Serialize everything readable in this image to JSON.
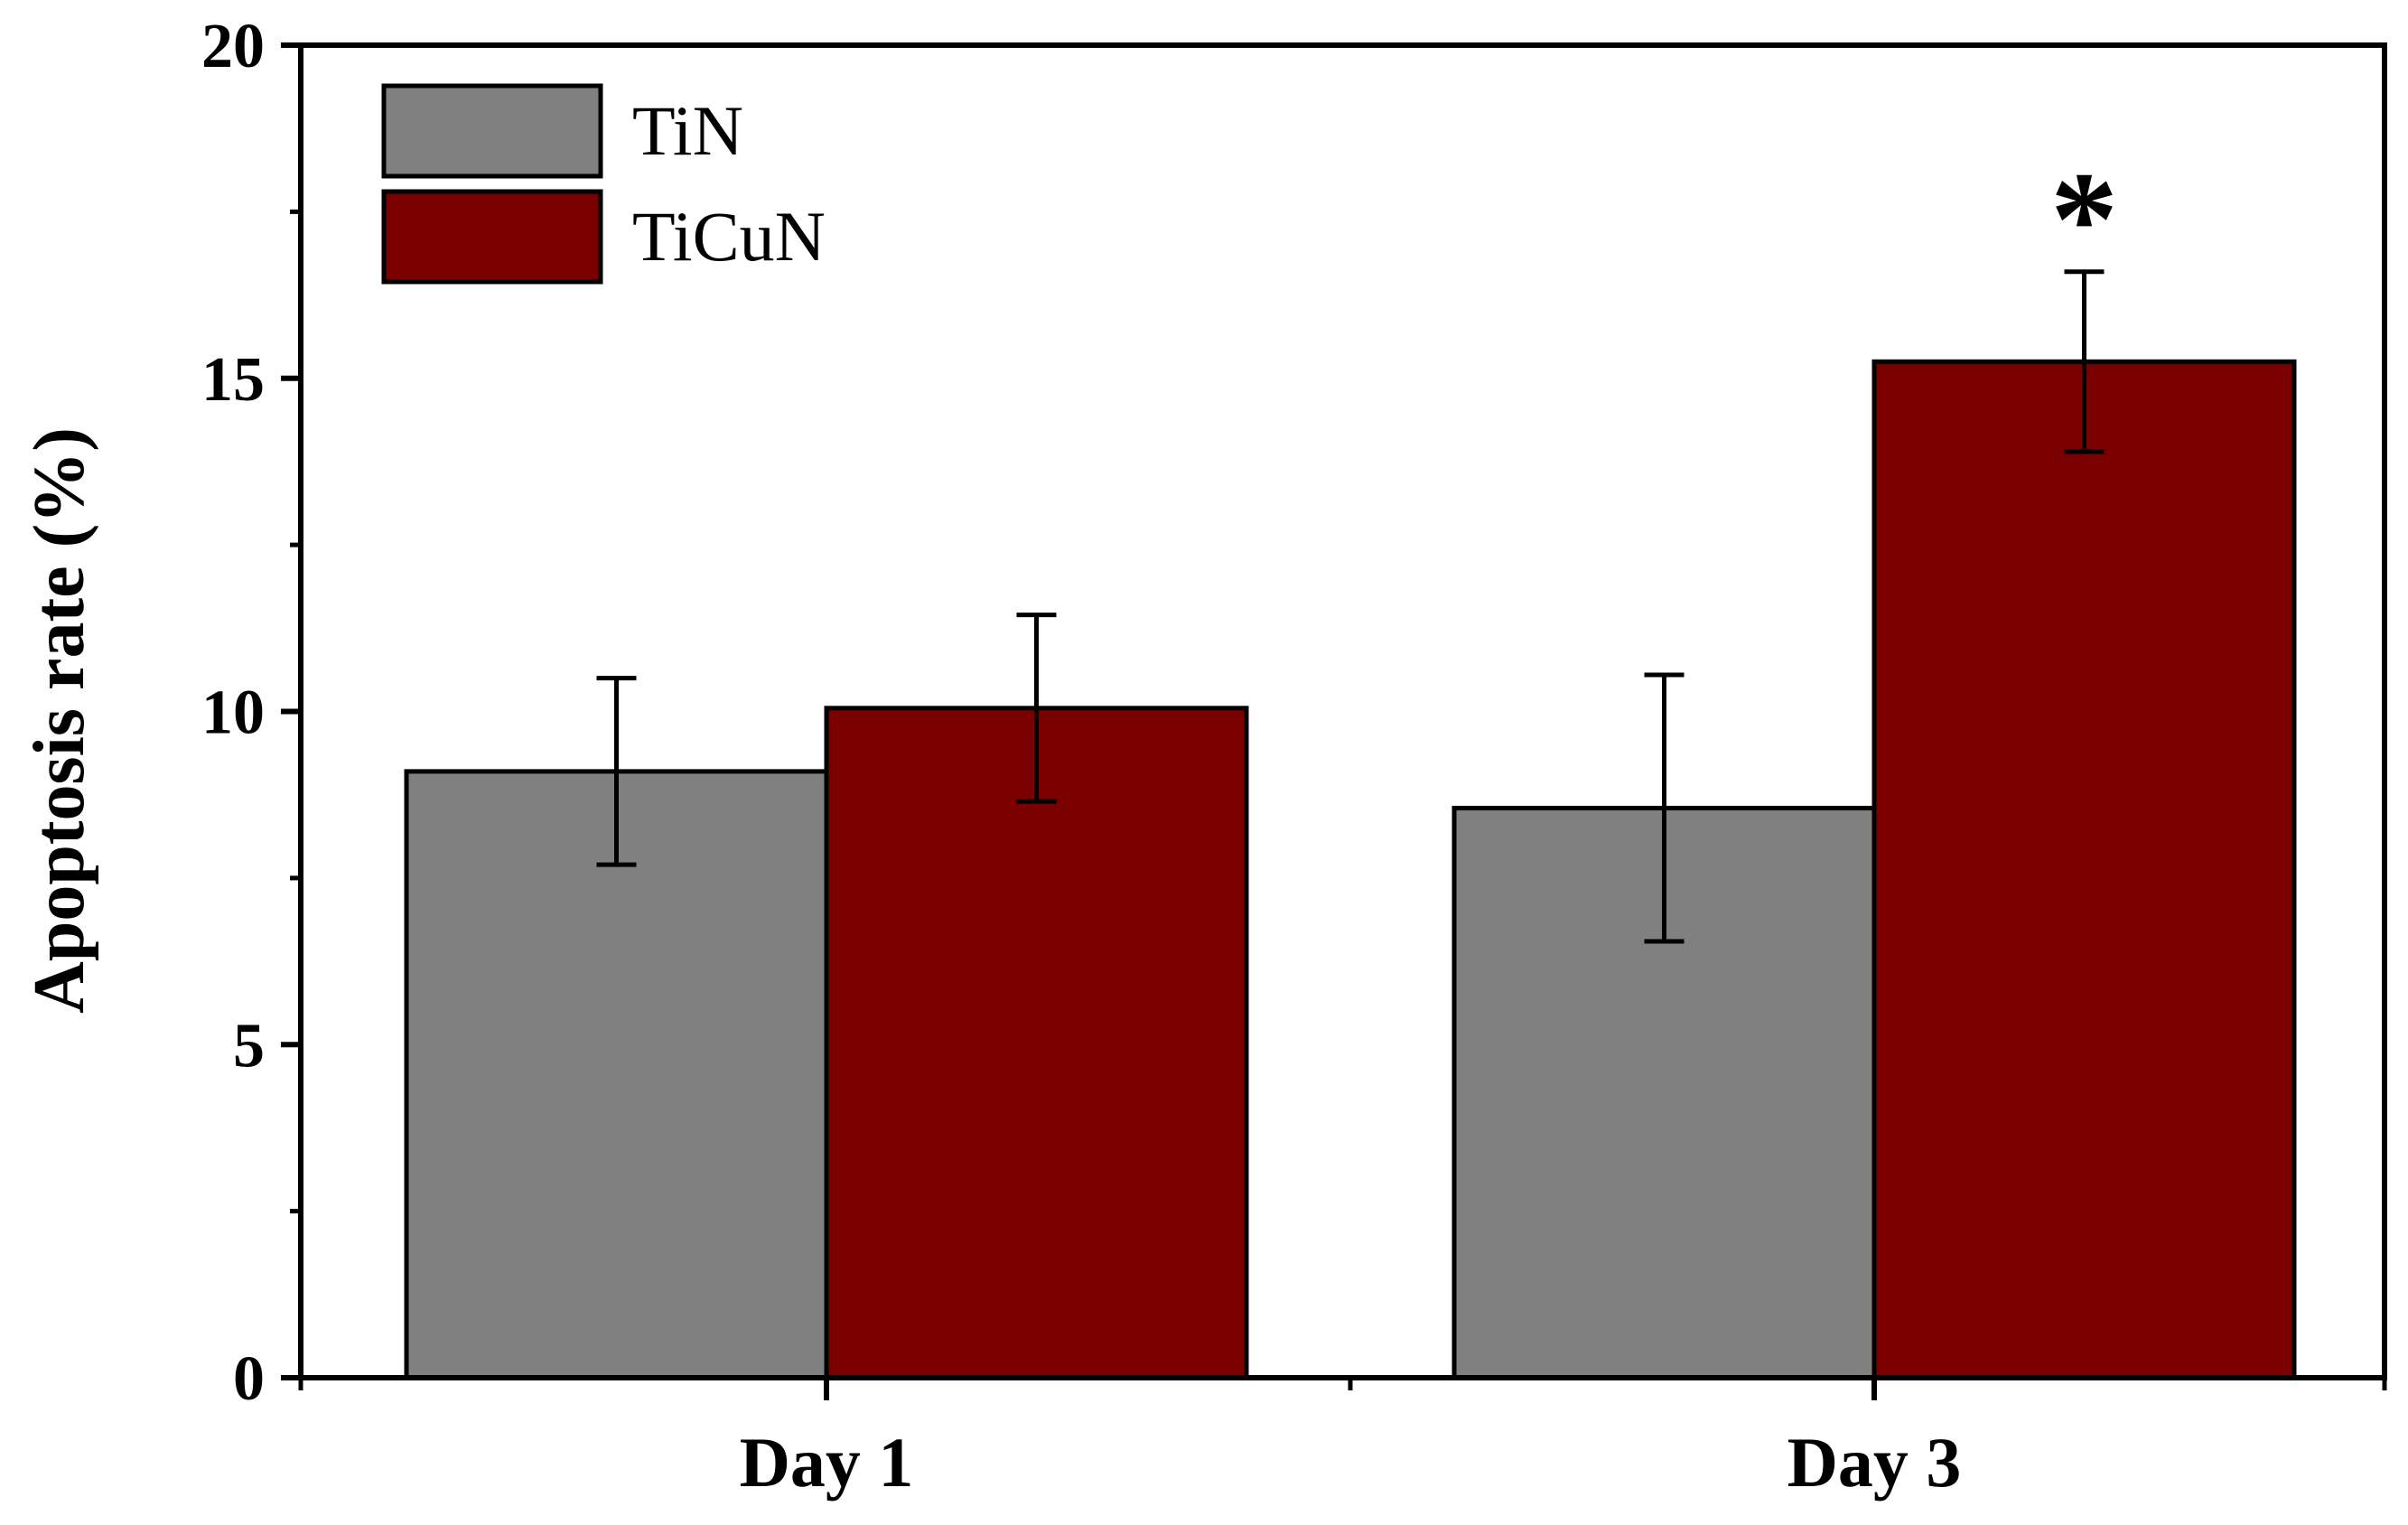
{
  "chart_data": {
    "type": "bar",
    "title": "",
    "xlabel": "",
    "ylabel": "Apoptosis rate (%)",
    "ylim": [
      0,
      20
    ],
    "yticks": [
      0,
      5,
      10,
      15,
      20
    ],
    "categories": [
      "Day 1",
      "Day 3"
    ],
    "series": [
      {
        "name": "TiN",
        "color": "#808080",
        "values": [
          9.1,
          8.55
        ],
        "errors": [
          1.4,
          2.0
        ]
      },
      {
        "name": "TiCuN",
        "color": "#7a0000",
        "values": [
          10.05,
          15.25
        ],
        "errors": [
          1.4,
          1.35
        ]
      }
    ],
    "legend_position": "top-left",
    "annotations": [
      {
        "text": "*",
        "category": "Day 3",
        "series": "TiCuN"
      }
    ],
    "grid": false
  }
}
